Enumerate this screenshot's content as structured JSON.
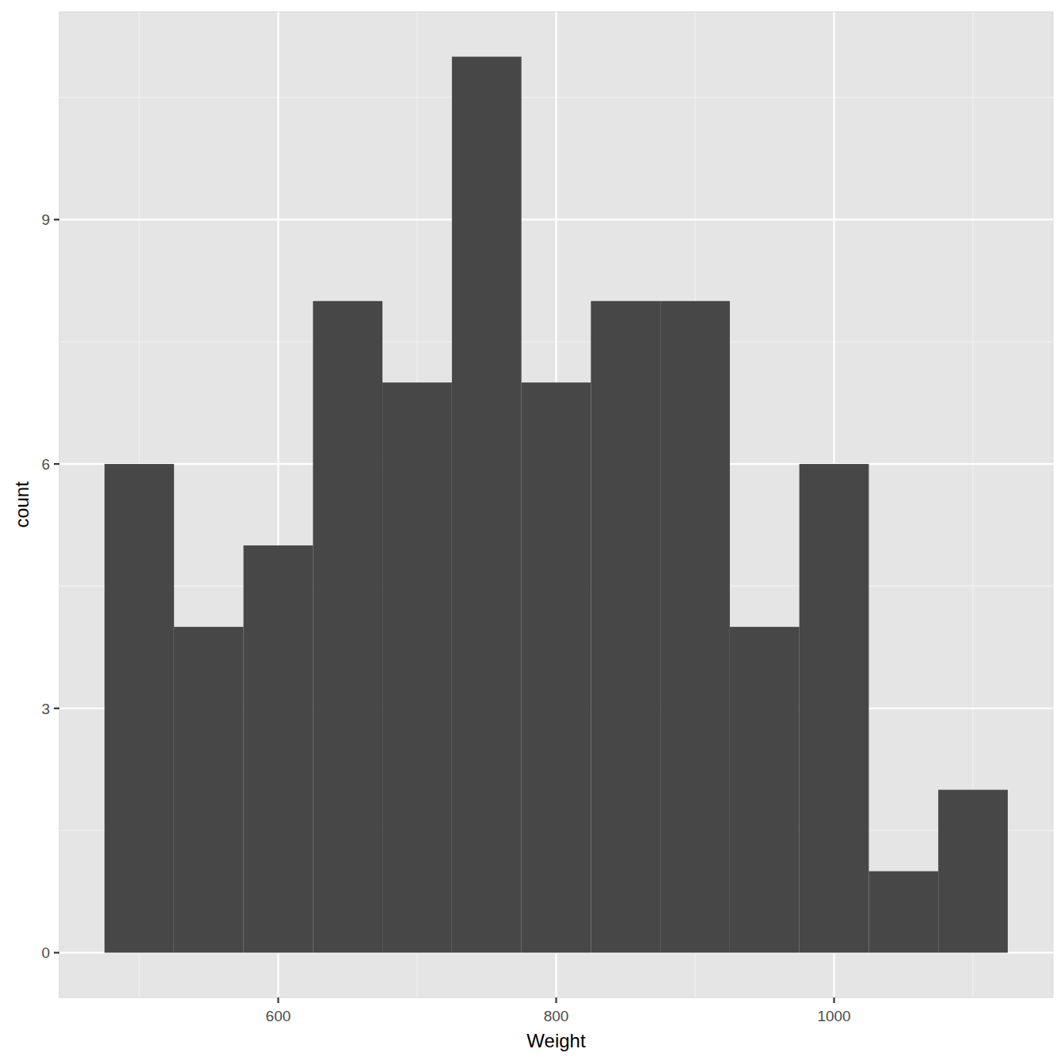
{
  "chart_data": {
    "type": "histogram",
    "x_label": "Weight",
    "y_label": "count",
    "bins": [
      475,
      525,
      575,
      625,
      675,
      725,
      775,
      825,
      875,
      925,
      975,
      1025,
      1075,
      1125
    ],
    "values": [
      6,
      4,
      5,
      8,
      7,
      11,
      7,
      8,
      8,
      4,
      6,
      1,
      2
    ],
    "color": "#474747",
    "xlim": [
      442.5,
      1157.5
    ],
    "xticks": [
      600,
      800,
      1000
    ],
    "ylim": [
      -0.55,
      11.55
    ],
    "yticks": [
      0,
      3,
      6,
      9
    ],
    "grid": true
  }
}
